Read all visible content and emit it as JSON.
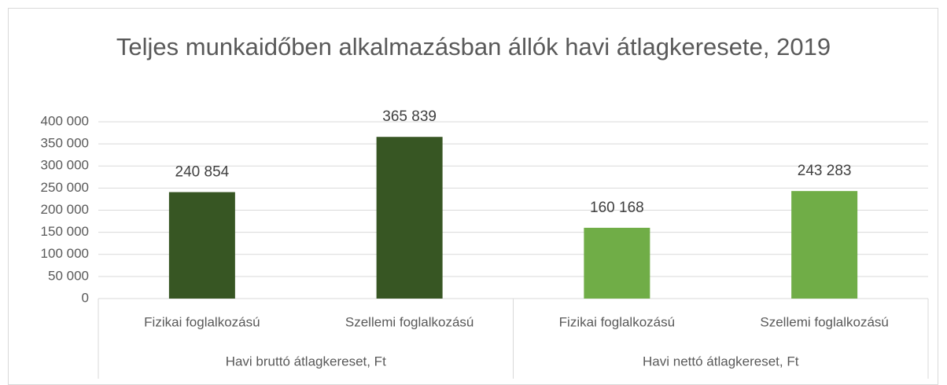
{
  "chart_data": {
    "type": "bar",
    "title": "Teljes munkaidőben alkalmazásban állók havi átlagkeresete, 2019",
    "categories": [
      "Fizikai foglalkozású",
      "Szellemi foglalkozású",
      "Fizikai foglalkozású",
      "Szellemi foglalkozású"
    ],
    "group_labels": [
      "Havi bruttó átlagkereset, Ft",
      "Havi nettó átlagkereset, Ft"
    ],
    "values": [
      240854,
      365839,
      160168,
      243283
    ],
    "value_labels": [
      "240 854",
      "365 839",
      "160 168",
      "243 283"
    ],
    "colors": [
      "#375623",
      "#375623",
      "#70ad47",
      "#70ad47"
    ],
    "ylim": [
      0,
      400000
    ],
    "yticks": [
      0,
      {
        "value": 50000,
        "label": "50 000"
      },
      {
        "value": 100000,
        "label": "100 000"
      },
      {
        "value": 150000,
        "label": "150 000"
      },
      {
        "value": 200000,
        "label": "200 000"
      },
      {
        "value": 250000,
        "label": "250 000"
      },
      {
        "value": 300000,
        "label": "300 000"
      },
      {
        "value": 350000,
        "label": "350 000"
      },
      {
        "value": 400000,
        "label": "400 000"
      }
    ],
    "grid": true
  }
}
